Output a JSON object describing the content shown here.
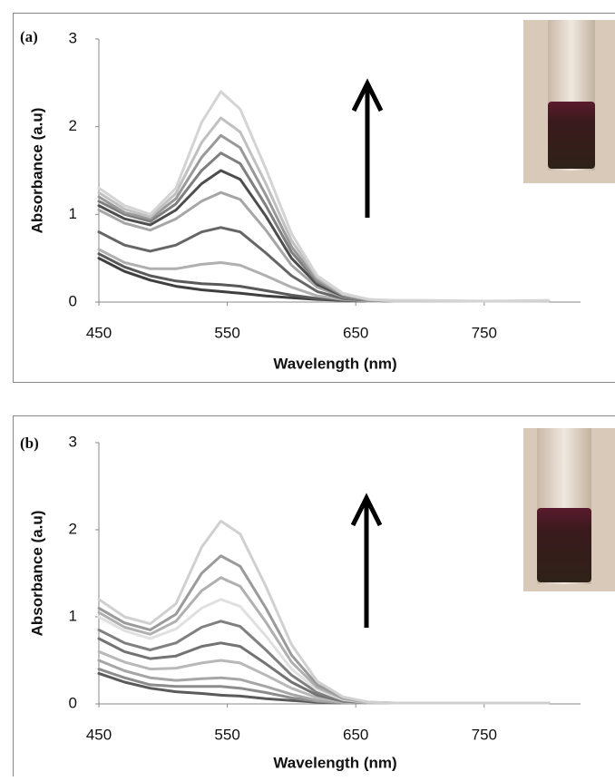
{
  "chart_data": [
    {
      "type": "line",
      "panel_label": "(a)",
      "x_label": "Wavelength (nm)",
      "y_label": "Absorbance (a.u)",
      "x": [
        450,
        470,
        490,
        510,
        530,
        545,
        560,
        580,
        600,
        620,
        640,
        660,
        680,
        700,
        750,
        800
      ],
      "xlim": [
        450,
        825
      ],
      "xticks": [
        450,
        550,
        650,
        750
      ],
      "ylim": [
        0,
        3
      ],
      "yticks": [
        0,
        1,
        2,
        3
      ],
      "series": [
        {
          "color": "#3f3f3f",
          "values": [
            0.5,
            0.35,
            0.25,
            0.18,
            0.14,
            0.12,
            0.1,
            0.07,
            0.05,
            0.03,
            0.02,
            0.01,
            0.01,
            0.01,
            0.01,
            0.01
          ]
        },
        {
          "color": "#595959",
          "values": [
            0.55,
            0.4,
            0.3,
            0.24,
            0.21,
            0.2,
            0.18,
            0.13,
            0.08,
            0.04,
            0.02,
            0.01,
            0.01,
            0.01,
            0.01,
            0.01
          ]
        },
        {
          "color": "#b0b0b0",
          "values": [
            0.6,
            0.45,
            0.38,
            0.38,
            0.43,
            0.45,
            0.42,
            0.3,
            0.17,
            0.07,
            0.03,
            0.01,
            0.01,
            0.01,
            0.01,
            0.01
          ]
        },
        {
          "color": "#666666",
          "values": [
            0.8,
            0.65,
            0.58,
            0.65,
            0.8,
            0.85,
            0.8,
            0.56,
            0.3,
            0.12,
            0.04,
            0.02,
            0.01,
            0.01,
            0.01,
            0.01
          ]
        },
        {
          "color": "#a6a6a6",
          "values": [
            1.05,
            0.9,
            0.82,
            0.95,
            1.15,
            1.25,
            1.17,
            0.82,
            0.42,
            0.17,
            0.06,
            0.02,
            0.01,
            0.01,
            0.01,
            0.01
          ]
        },
        {
          "color": "#4d4d4d",
          "values": [
            1.1,
            0.95,
            0.88,
            1.05,
            1.35,
            1.5,
            1.4,
            0.98,
            0.5,
            0.2,
            0.07,
            0.02,
            0.01,
            0.01,
            0.01,
            0.01
          ]
        },
        {
          "color": "#7f7f7f",
          "values": [
            1.15,
            1.0,
            0.92,
            1.12,
            1.5,
            1.7,
            1.58,
            1.1,
            0.57,
            0.23,
            0.08,
            0.02,
            0.01,
            0.01,
            0.01,
            0.01
          ]
        },
        {
          "color": "#999999",
          "values": [
            1.2,
            1.02,
            0.95,
            1.18,
            1.65,
            1.9,
            1.76,
            1.22,
            0.63,
            0.25,
            0.08,
            0.02,
            0.01,
            0.01,
            0.01,
            0.01
          ]
        },
        {
          "color": "#c0c0c0",
          "values": [
            1.25,
            1.06,
            0.97,
            1.24,
            1.82,
            2.1,
            1.94,
            1.35,
            0.7,
            0.28,
            0.09,
            0.03,
            0.01,
            0.01,
            0.01,
            0.01
          ]
        },
        {
          "color": "#d4d4d4",
          "values": [
            1.3,
            1.1,
            1.0,
            1.3,
            2.05,
            2.4,
            2.2,
            1.52,
            0.78,
            0.3,
            0.1,
            0.03,
            0.02,
            0.02,
            0.01,
            0.02
          ]
        }
      ]
    },
    {
      "type": "line",
      "panel_label": "(b)",
      "x_label": "Wavelength (nm)",
      "y_label": "Absorbance (a.u)",
      "x": [
        450,
        470,
        490,
        510,
        530,
        545,
        560,
        580,
        600,
        620,
        640,
        660,
        680,
        700,
        750,
        800
      ],
      "xlim": [
        450,
        825
      ],
      "xticks": [
        450,
        550,
        650,
        750
      ],
      "ylim": [
        0,
        3
      ],
      "yticks": [
        0,
        1,
        2,
        3
      ],
      "series": [
        {
          "color": "#5a5a5a",
          "values": [
            0.35,
            0.25,
            0.18,
            0.14,
            0.12,
            0.1,
            0.09,
            0.06,
            0.04,
            0.02,
            0.01,
            0.01,
            0.01,
            0.01,
            0.01,
            0.01
          ]
        },
        {
          "color": "#8c8c8c",
          "values": [
            0.4,
            0.3,
            0.22,
            0.2,
            0.2,
            0.2,
            0.18,
            0.13,
            0.07,
            0.03,
            0.01,
            0.01,
            0.01,
            0.01,
            0.01,
            0.01
          ]
        },
        {
          "color": "#a6a6a6",
          "values": [
            0.5,
            0.38,
            0.3,
            0.27,
            0.29,
            0.3,
            0.28,
            0.2,
            0.11,
            0.04,
            0.02,
            0.01,
            0.01,
            0.01,
            0.01,
            0.01
          ]
        },
        {
          "color": "#b8b8b8",
          "values": [
            0.6,
            0.48,
            0.4,
            0.41,
            0.47,
            0.5,
            0.47,
            0.33,
            0.18,
            0.07,
            0.02,
            0.01,
            0.01,
            0.01,
            0.01,
            0.01
          ]
        },
        {
          "color": "#737373",
          "values": [
            0.75,
            0.6,
            0.52,
            0.55,
            0.66,
            0.7,
            0.66,
            0.46,
            0.25,
            0.1,
            0.03,
            0.01,
            0.01,
            0.01,
            0.01,
            0.01
          ]
        },
        {
          "color": "#808080",
          "values": [
            0.85,
            0.7,
            0.62,
            0.7,
            0.88,
            0.95,
            0.89,
            0.62,
            0.33,
            0.13,
            0.04,
            0.01,
            0.01,
            0.01,
            0.01,
            0.01
          ]
        },
        {
          "color": "#e0e0e0",
          "values": [
            1.0,
            0.84,
            0.75,
            0.86,
            1.1,
            1.2,
            1.12,
            0.78,
            0.4,
            0.16,
            0.05,
            0.01,
            0.01,
            0.01,
            0.01,
            0.01
          ]
        },
        {
          "color": "#b0b0b0",
          "values": [
            1.05,
            0.88,
            0.8,
            0.95,
            1.3,
            1.45,
            1.35,
            0.94,
            0.48,
            0.19,
            0.06,
            0.01,
            0.01,
            0.01,
            0.01,
            0.01
          ]
        },
        {
          "color": "#9a9a9a",
          "values": [
            1.1,
            0.93,
            0.85,
            1.03,
            1.5,
            1.7,
            1.58,
            1.1,
            0.56,
            0.22,
            0.07,
            0.02,
            0.01,
            0.01,
            0.01,
            0.01
          ]
        },
        {
          "color": "#d0d0d0",
          "values": [
            1.2,
            1.0,
            0.92,
            1.15,
            1.8,
            2.1,
            1.95,
            1.35,
            0.68,
            0.26,
            0.08,
            0.02,
            0.01,
            0.01,
            0.01,
            0.01
          ]
        }
      ]
    }
  ]
}
